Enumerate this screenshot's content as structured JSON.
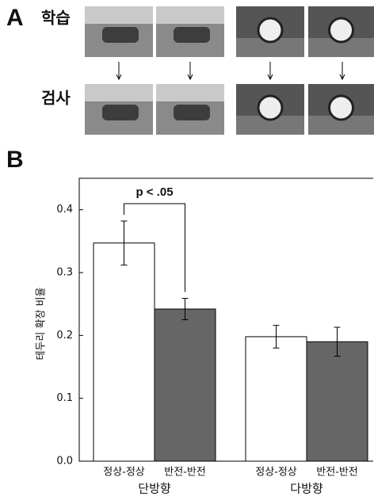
{
  "panel_a": {
    "label": "A",
    "rows": [
      "학습",
      "검사"
    ]
  },
  "chart_data": {
    "type": "bar",
    "panel_label": "B",
    "annotation": "p < .05",
    "y_label": "테두리 확장 비율",
    "categories": [
      "단방향",
      "다방향"
    ],
    "series": [
      {
        "name": "정상-정상",
        "color": "#ffffff",
        "values": [
          0.347,
          0.198
        ],
        "errors": [
          0.035,
          0.018
        ]
      },
      {
        "name": "반전-반전",
        "color": "#666666",
        "values": [
          0.242,
          0.19
        ],
        "errors": [
          0.017,
          0.023
        ]
      }
    ],
    "ylim": [
      0,
      0.45
    ],
    "yticks": [
      {
        "value": 0,
        "label": "0.0"
      },
      0.1,
      0.2,
      0.3,
      0.4
    ]
  }
}
